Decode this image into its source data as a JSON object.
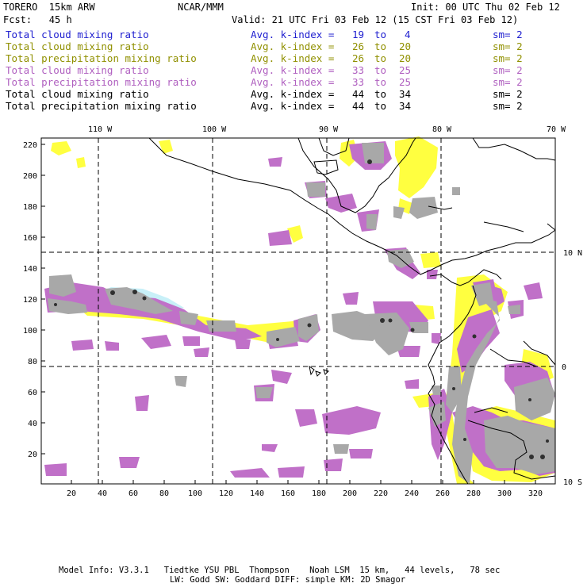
{
  "header": {
    "model": "TORERO  15km ARW",
    "org": "NCAR/MMM",
    "init": "Init: 00 UTC Thu 02 Feb 12",
    "fcst": "Fcst:   45 h",
    "valid": "Valid: 21 UTC Fri 03 Feb 12 (15 CST Fri 03 Feb 12)"
  },
  "legend": [
    {
      "field": "Total cloud mixing ratio",
      "index": "Avg. k-index =",
      "from": "19",
      "to_word": "to",
      "to": "4",
      "sm": "sm= 2",
      "color": "#2020d0"
    },
    {
      "field": "Total cloud mixing ratio",
      "index": "Avg. k-index =",
      "from": "26",
      "to_word": "to",
      "to": "20",
      "sm": "sm= 2",
      "color": "#909000"
    },
    {
      "field": "Total precipitation mixing ratio",
      "index": "Avg. k-index =",
      "from": "26",
      "to_word": "to",
      "to": "20",
      "sm": "sm= 2",
      "color": "#909000"
    },
    {
      "field": "Total cloud mixing ratio",
      "index": "Avg. k-index =",
      "from": "33",
      "to_word": "to",
      "to": "25",
      "sm": "sm= 2",
      "color": "#b060c0"
    },
    {
      "field": "Total precipitation mixing ratio",
      "index": "Avg. k-index =",
      "from": "33",
      "to_word": "to",
      "to": "25",
      "sm": "sm= 2",
      "color": "#b060c0"
    },
    {
      "field": "Total cloud mixing ratio",
      "index": "Avg. k-index =",
      "from": "44",
      "to_word": "to",
      "to": "34",
      "sm": "sm= 2",
      "color": "#000000"
    },
    {
      "field": "Total precipitation mixing ratio",
      "index": "Avg. k-index =",
      "from": "44",
      "to_word": "to",
      "to": "34",
      "sm": "sm= 2",
      "color": "#000000"
    }
  ],
  "map": {
    "lon_labels": [
      "110 W",
      "100 W",
      "90 W",
      "80 W",
      "70 W"
    ],
    "lat_labels": [
      "10 N",
      "0",
      "10 S"
    ],
    "y_ticks": [
      "220",
      "200",
      "180",
      "160",
      "140",
      "120",
      "100",
      "80",
      "60",
      "40",
      "20"
    ],
    "x_ticks": [
      "20",
      "40",
      "60",
      "80",
      "100",
      "120",
      "140",
      "160",
      "180",
      "200",
      "220",
      "240",
      "260",
      "280",
      "300",
      "320"
    ],
    "colors": {
      "blue": "#c8f0f8",
      "yellow": "#ffff40",
      "purple": "#c070c8",
      "gray": "#a8a8a8",
      "dark": "#303030"
    }
  },
  "footer": {
    "line1": "Model Info: V3.3.1   Tiedtke YSU PBL  Thompson    Noah LSM  15 km,   44 levels,   78 sec",
    "line2": "LW: Godd SW: Goddard DIFF: simple KM: 2D Smagor"
  }
}
